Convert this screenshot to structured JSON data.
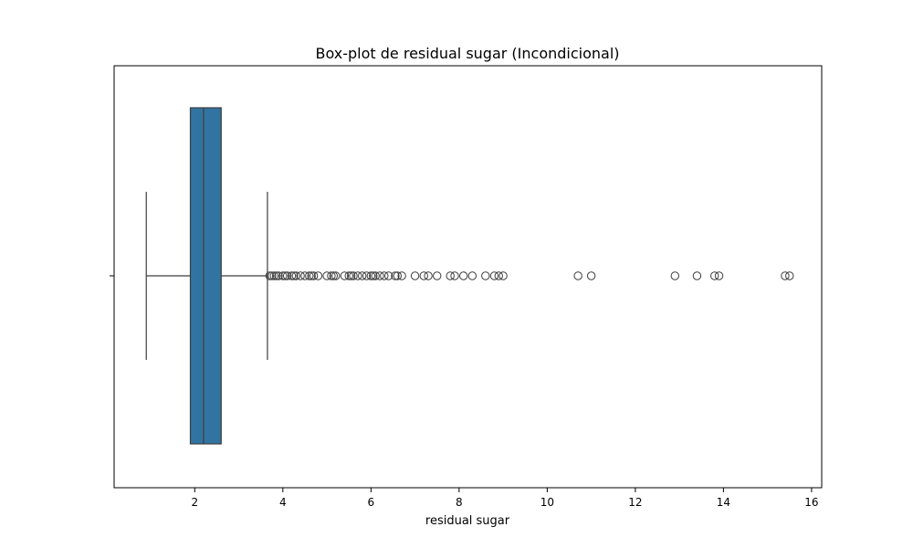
{
  "chart_data": {
    "type": "boxplot",
    "orientation": "horizontal",
    "title": "Box-plot de residual sugar (Incondicional)",
    "xlabel": "residual sugar",
    "ylabel": "",
    "xlim": [
      0.17,
      16.23
    ],
    "xticks": [
      2,
      4,
      6,
      8,
      10,
      12,
      14,
      16
    ],
    "box": {
      "whisker_low": 0.9,
      "q1": 1.9,
      "median": 2.2,
      "q3": 2.6,
      "whisker_high": 3.65
    },
    "outliers": [
      3.7,
      3.75,
      3.8,
      3.85,
      3.9,
      4.0,
      4.05,
      4.1,
      4.2,
      4.25,
      4.3,
      4.4,
      4.5,
      4.6,
      4.65,
      4.7,
      4.8,
      5.0,
      5.1,
      5.15,
      5.2,
      5.4,
      5.5,
      5.55,
      5.6,
      5.7,
      5.8,
      5.9,
      6.0,
      6.05,
      6.1,
      6.2,
      6.3,
      6.4,
      6.55,
      6.6,
      6.7,
      7.0,
      7.2,
      7.3,
      7.5,
      7.8,
      7.9,
      8.1,
      8.3,
      8.6,
      8.8,
      8.9,
      9.0,
      10.7,
      11.0,
      12.9,
      13.4,
      13.8,
      13.9,
      15.4,
      15.5
    ],
    "box_color": "#3274a1",
    "line_color": "#3d3d3d"
  }
}
